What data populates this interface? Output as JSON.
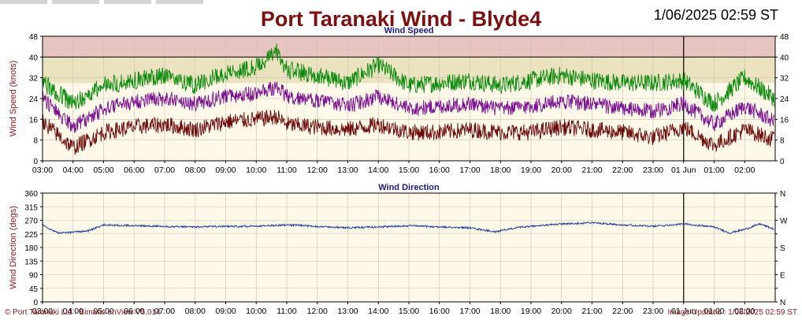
{
  "header": {
    "title": "Port Taranaki Wind - Blyde4",
    "timestamp": "1/06/2025 02:59 ST"
  },
  "footer": {
    "left": "© Port Taranaki Ltd - Bimaris enView V5.014",
    "right": "Image Updated : 1/06/2025 02:59 ST"
  },
  "colors": {
    "title": "#7a1010",
    "panel_title": "#1a1a80",
    "axis_label": "#8b1a1a",
    "plot_bg": "#fdf8e8",
    "band_red": "#e6c4bf",
    "band_yellow": "#ebe2c0",
    "gust": "#0a8a0a",
    "mean": "#7a1090",
    "lull": "#6b0a0a",
    "direction": "#1a3a9a"
  },
  "chart_data": [
    {
      "type": "line",
      "title": "Wind Speed",
      "ylabel": "Wind Speed (knots)",
      "ylim": [
        0,
        48
      ],
      "yticks": [
        0,
        8,
        16,
        24,
        32,
        40,
        48
      ],
      "xlim_hours": [
        3,
        27
      ],
      "xticks": [
        "03:00",
        "04:00",
        "05:00",
        "06:00",
        "07:00",
        "08:00",
        "09:00",
        "10:00",
        "11:00",
        "12:00",
        "13:00",
        "14:00",
        "15:00",
        "16:00",
        "17:00",
        "18:00",
        "19:00",
        "20:00",
        "21:00",
        "22:00",
        "23:00",
        "01 Jun",
        "01:00",
        "02:00"
      ],
      "bands": [
        {
          "from": 40,
          "to": 48,
          "color": "red"
        },
        {
          "from": 30,
          "to": 40,
          "color": "yellow"
        }
      ],
      "day_marker": "01 Jun",
      "grid": true,
      "series": [
        {
          "key": "gust",
          "x": [
            "03:00",
            "04:00",
            "05:00",
            "06:00",
            "07:00",
            "08:00",
            "09:00",
            "10:00",
            "10:40",
            "11:00",
            "12:00",
            "13:00",
            "14:00",
            "15:00",
            "16:00",
            "17:00",
            "18:00",
            "19:00",
            "20:00",
            "21:00",
            "22:00",
            "23:00",
            "00:00",
            "01:00",
            "02:00",
            "02:59"
          ],
          "values": [
            30,
            22,
            29,
            31,
            33,
            29,
            34,
            36,
            42,
            35,
            33,
            30,
            37,
            29,
            30,
            31,
            29,
            31,
            33,
            31,
            30,
            30,
            31,
            22,
            32,
            24
          ]
        },
        {
          "key": "mean",
          "x": [
            "03:00",
            "04:00",
            "05:00",
            "06:00",
            "07:00",
            "08:00",
            "09:00",
            "10:00",
            "10:40",
            "11:00",
            "12:00",
            "13:00",
            "14:00",
            "15:00",
            "16:00",
            "17:00",
            "18:00",
            "19:00",
            "20:00",
            "21:00",
            "22:00",
            "23:00",
            "00:00",
            "01:00",
            "02:00",
            "02:59"
          ],
          "values": [
            24,
            13,
            20,
            23,
            24,
            22,
            25,
            26,
            28,
            25,
            23,
            21,
            25,
            20,
            21,
            22,
            20,
            21,
            23,
            22,
            20,
            19,
            22,
            14,
            21,
            15
          ]
        },
        {
          "key": "lull",
          "x": [
            "03:00",
            "04:00",
            "05:00",
            "06:00",
            "07:00",
            "08:00",
            "09:00",
            "10:00",
            "10:40",
            "11:00",
            "12:00",
            "13:00",
            "14:00",
            "15:00",
            "16:00",
            "17:00",
            "18:00",
            "19:00",
            "20:00",
            "21:00",
            "22:00",
            "23:00",
            "00:00",
            "01:00",
            "02:00",
            "02:59"
          ],
          "values": [
            15,
            5,
            11,
            13,
            14,
            12,
            15,
            16,
            17,
            14,
            13,
            12,
            14,
            11,
            11,
            12,
            11,
            11,
            13,
            12,
            11,
            9,
            13,
            6,
            12,
            8
          ]
        }
      ]
    },
    {
      "type": "line",
      "title": "Wind Direction",
      "ylabel": "Wind Direction (degs)",
      "ylim": [
        0,
        360
      ],
      "yticks": [
        0,
        45,
        90,
        135,
        180,
        225,
        270,
        315,
        360
      ],
      "yticks_right": [
        "N",
        "E",
        "S",
        "W",
        "N"
      ],
      "xlim_hours": [
        3,
        27
      ],
      "xticks": [
        "03:00",
        "04:00",
        "05:00",
        "06:00",
        "07:00",
        "08:00",
        "09:00",
        "10:00",
        "11:00",
        "12:00",
        "13:00",
        "14:00",
        "15:00",
        "16:00",
        "17:00",
        "18:00",
        "19:00",
        "20:00",
        "21:00",
        "22:00",
        "23:00",
        "01 Jun",
        "01:00",
        "02:00"
      ],
      "day_marker": "01 Jun",
      "grid": true,
      "series": [
        {
          "key": "direction",
          "x": [
            "03:00",
            "03:30",
            "04:00",
            "04:30",
            "05:00",
            "06:00",
            "07:00",
            "08:00",
            "09:00",
            "10:00",
            "11:00",
            "12:00",
            "13:00",
            "14:00",
            "15:00",
            "16:00",
            "17:00",
            "17:50",
            "18:30",
            "19:00",
            "20:00",
            "21:00",
            "22:00",
            "23:00",
            "00:00",
            "01:00",
            "01:30",
            "02:00",
            "02:30",
            "02:59"
          ],
          "values": [
            255,
            228,
            230,
            235,
            255,
            252,
            250,
            248,
            250,
            250,
            255,
            250,
            245,
            248,
            252,
            248,
            245,
            232,
            245,
            250,
            258,
            262,
            255,
            250,
            258,
            248,
            228,
            240,
            258,
            240
          ]
        }
      ]
    }
  ]
}
